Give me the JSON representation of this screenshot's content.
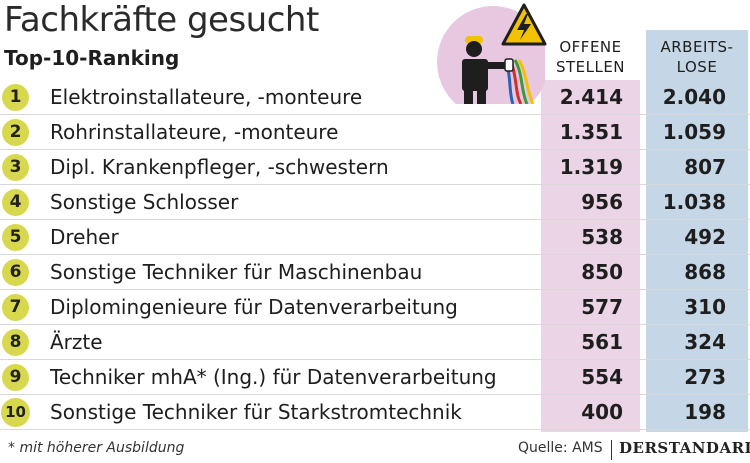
{
  "chart_data": {
    "type": "table",
    "title": "Fachkräfte gesucht",
    "subtitle": "Top-10-Ranking",
    "columns": [
      "OFFENE STELLEN",
      "ARBEITS-LOSE"
    ],
    "column_headers": {
      "offene": [
        "OFFENE",
        "STELLEN"
      ],
      "arbeitslose": [
        "ARBEITS-",
        "LOSE"
      ]
    },
    "rows": [
      {
        "rank": "1",
        "label": "Elektroinstallateure, -monteure",
        "offene": "2.414",
        "arbeitslose": "2.040"
      },
      {
        "rank": "2",
        "label": "Rohrinstallateure, -monteure",
        "offene": "1.351",
        "arbeitslose": "1.059"
      },
      {
        "rank": "3",
        "label": "Dipl. Krankenpfleger, -schwestern",
        "offene": "1.319",
        "arbeitslose": "807"
      },
      {
        "rank": "4",
        "label": "Sonstige Schlosser",
        "offene": "956",
        "arbeitslose": "1.038"
      },
      {
        "rank": "5",
        "label": "Dreher",
        "offene": "538",
        "arbeitslose": "492"
      },
      {
        "rank": "6",
        "label": "Sonstige Techniker für Maschinenbau",
        "offene": "850",
        "arbeitslose": "868"
      },
      {
        "rank": "7",
        "label": "Diplomingenieure für Datenverarbeitung",
        "offene": "577",
        "arbeitslose": "310"
      },
      {
        "rank": "8",
        "label": "Ärzte",
        "offene": "561",
        "arbeitslose": "324"
      },
      {
        "rank": "9",
        "label": "Techniker mhA* (Ing.) für Datenverarbeitung",
        "offene": "554",
        "arbeitslose": "273"
      },
      {
        "rank": "10",
        "label": "Sonstige Techniker für Starkstromtechnik",
        "offene": "400",
        "arbeitslose": "198"
      }
    ],
    "footnote": "* mit höherer Ausbildung",
    "source": "Quelle: AMS",
    "brand": "DERSTANDARD"
  },
  "colors": {
    "offene_column": "#ead4e6",
    "arbeitslose_column": "#c5d7e6",
    "badge": "#d8d84e",
    "illustration_circle": "#e8c8e0"
  },
  "icons": [
    "electrician-icon",
    "high-voltage-warning-icon"
  ]
}
